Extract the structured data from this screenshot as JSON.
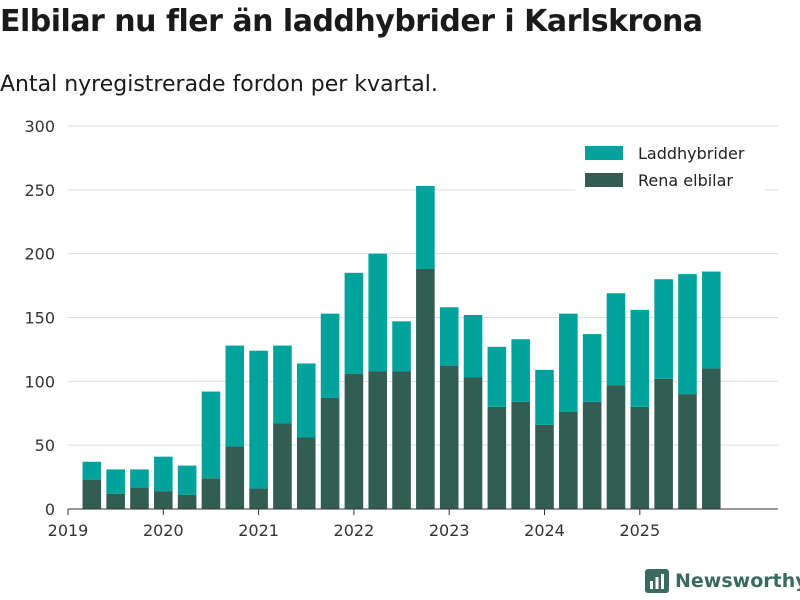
{
  "chart_data": {
    "type": "bar",
    "stacked": true,
    "title": "Elbilar nu fler än laddhybrider i Karlskrona",
    "subtitle": "Antal nyregistrerade fordon per kvartal.",
    "xlabel": "",
    "ylabel": "",
    "ylim": [
      0,
      300
    ],
    "xlim": [
      2019.0,
      2026.45
    ],
    "yticks": [
      0,
      50,
      100,
      150,
      200,
      250,
      300
    ],
    "xticks": [
      {
        "label": "2019",
        "value": 2019
      },
      {
        "label": "2020",
        "value": 2020
      },
      {
        "label": "2021",
        "value": 2021
      },
      {
        "label": "2022",
        "value": 2022
      },
      {
        "label": "2023",
        "value": 2023
      },
      {
        "label": "2024",
        "value": 2024
      },
      {
        "label": "2025",
        "value": 2025
      }
    ],
    "x": [
      2019.25,
      2019.5,
      2019.75,
      2020.0,
      2020.25,
      2020.5,
      2020.75,
      2021.0,
      2021.25,
      2021.5,
      2021.75,
      2022.0,
      2022.25,
      2022.5,
      2022.75,
      2023.0,
      2023.25,
      2023.5,
      2023.75,
      2024.0,
      2024.25,
      2024.5,
      2024.75,
      2025.0,
      2025.25,
      2025.5,
      2025.75
    ],
    "categories": [
      "2019 K2",
      "2019 K3",
      "2019 K4",
      "2020 K1",
      "2020 K2",
      "2020 K3",
      "2020 K4",
      "2021 K1",
      "2021 K2",
      "2021 K3",
      "2021 K4",
      "2022 K1",
      "2022 K2",
      "2022 K3",
      "2022 K4",
      "2023 K1",
      "2023 K2",
      "2023 K3",
      "2023 K4",
      "2024 K1",
      "2024 K2",
      "2024 K3",
      "2024 K4",
      "2025 K1",
      "2025 K2",
      "2025 K3",
      "2025 K4"
    ],
    "series": [
      {
        "name": "Rena elbilar",
        "color": "#335c53",
        "values": [
          23,
          12,
          17,
          14,
          11,
          24,
          49,
          16,
          67,
          56,
          87,
          106,
          108,
          108,
          188,
          112,
          103,
          80,
          84,
          66,
          76,
          84,
          97,
          80,
          102,
          90,
          110
        ]
      },
      {
        "name": "Laddhybrider",
        "color": "#00a29c",
        "values": [
          14,
          19,
          14,
          27,
          23,
          68,
          79,
          108,
          61,
          58,
          66,
          79,
          92,
          39,
          65,
          46,
          49,
          47,
          49,
          43,
          77,
          53,
          72,
          76,
          78,
          94,
          76
        ]
      }
    ],
    "legend": [
      "Laddhybrider",
      "Rena elbilar"
    ],
    "legend_position": "top-right",
    "grid": true
  },
  "brand": {
    "name": "Newsworthy",
    "icon": "bar-chart-icon",
    "color": "#3a6a5f"
  }
}
